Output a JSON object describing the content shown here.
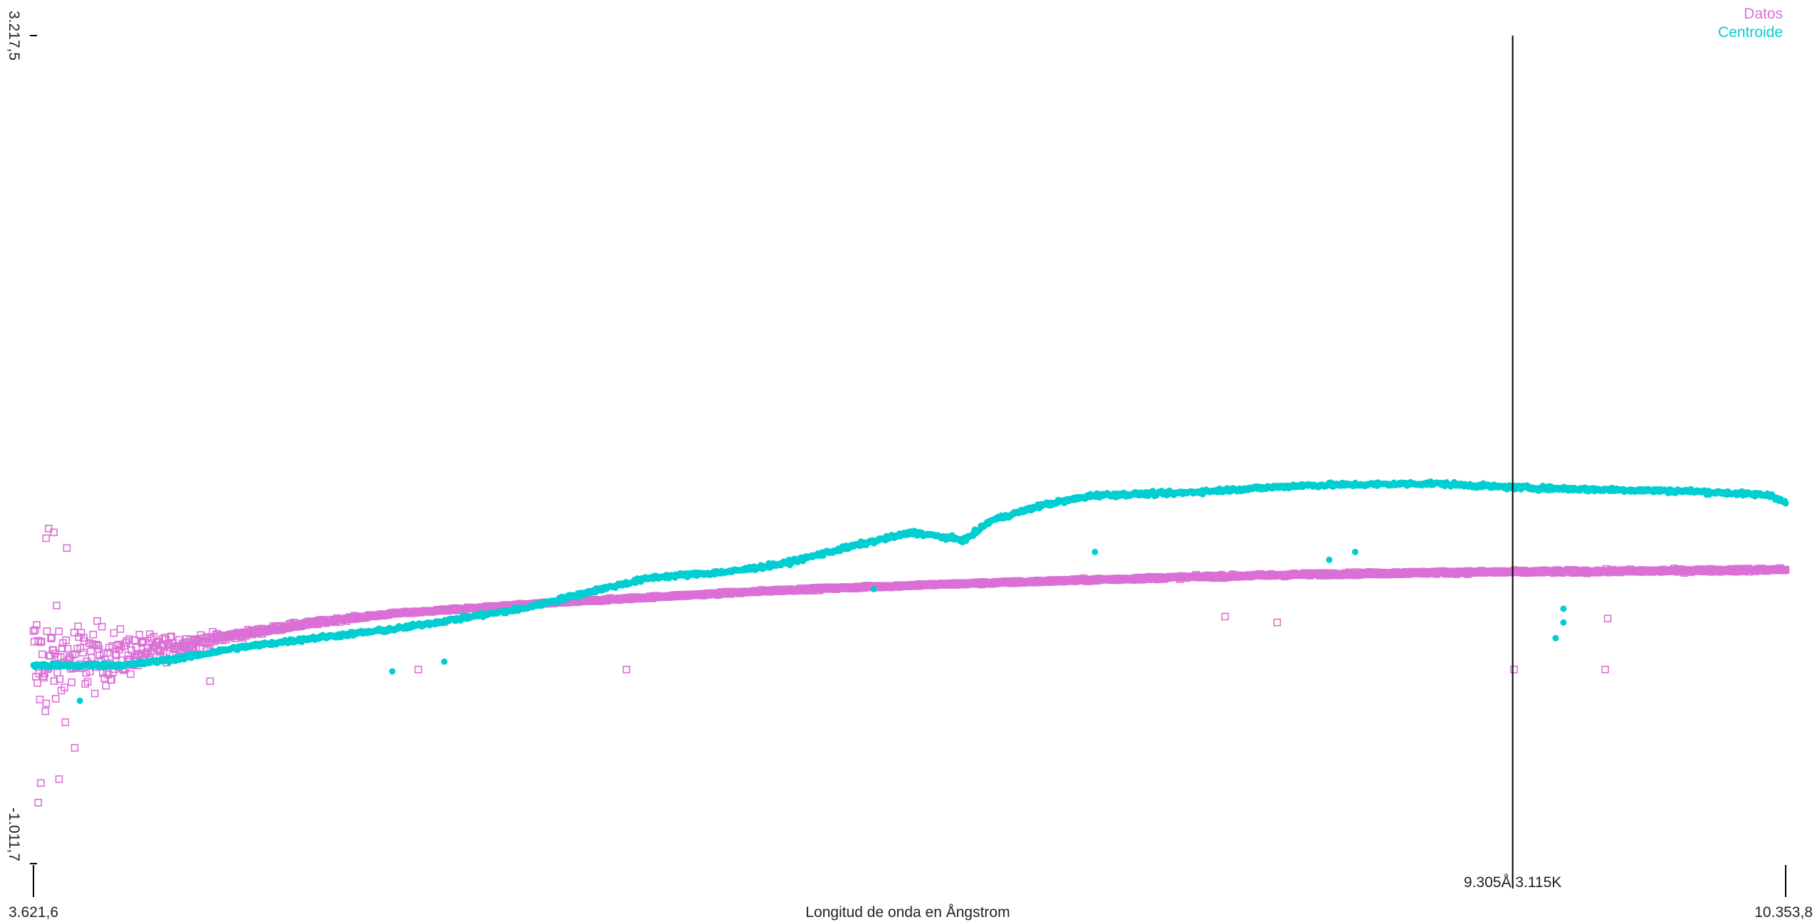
{
  "chart_data": {
    "type": "scatter",
    "title": "",
    "xlabel": "Longitud de onda en Ångstrom",
    "ylabel": "",
    "xlim": [
      3621.6,
      10353.8
    ],
    "ylim": [
      -1011.7,
      3217.5
    ],
    "tick_labels": {
      "x_min": "3.621,6",
      "x_max": "10.353,8",
      "y_min": "-1.011,7",
      "y_max": "3.217,5"
    },
    "legend_position": "top-right",
    "legend": [
      {
        "name": "Datos",
        "color": "#da70d6",
        "marker": "open-square"
      },
      {
        "name": "Centroide",
        "color": "#00ced1",
        "marker": "filled-circle"
      }
    ],
    "cursor": {
      "x": 9305,
      "label": "9.305Å 3.115K"
    },
    "series": [
      {
        "name": "Datos",
        "color": "#da70d6",
        "marker": "open-square",
        "trend": {
          "x": [
            3621.6,
            3800,
            4000,
            4200,
            4400,
            4600,
            4800,
            5000,
            5500,
            6000,
            6500,
            7000,
            7500,
            8000,
            8500,
            9000,
            9500,
            10000,
            10353.8
          ],
          "y": [
            0,
            30,
            60,
            110,
            155,
            200,
            235,
            265,
            310,
            350,
            385,
            410,
            430,
            450,
            465,
            475,
            480,
            485,
            490
          ]
        },
        "scatter_envelope": {
          "x": [
            3621.6,
            3700,
            3800,
            3900,
            4000,
            4100,
            4200,
            4400,
            5000,
            10353.8
          ],
          "y": [
            600,
            450,
            350,
            250,
            180,
            120,
            80,
            30,
            10,
            15
          ]
        },
        "outliers": {
          "x": [
            3640,
            3650,
            3670,
            3680,
            3700,
            3720,
            3750,
            3780,
            4300,
            5100,
            5900,
            8200,
            8400,
            9310,
            9660,
            9670
          ],
          "y": [
            -700,
            -600,
            650,
            700,
            680,
            -580,
            600,
            -420,
            -80,
            -20,
            -20,
            250,
            220,
            -20,
            -20,
            240
          ]
        }
      },
      {
        "name": "Centroide",
        "color": "#00ced1",
        "marker": "filled-circle",
        "trend": {
          "x": [
            3621.6,
            3800,
            4000,
            4200,
            4400,
            4700,
            5000,
            5500,
            5800,
            6000,
            6300,
            6500,
            6800,
            7000,
            7200,
            7300,
            7500,
            7700,
            8000,
            8500,
            9000,
            9300,
            9600,
            10000,
            10300,
            10353.8
          ],
          "y": [
            0,
            0,
            5,
            40,
            90,
            140,
            185,
            290,
            390,
            450,
            480,
            520,
            620,
            680,
            640,
            740,
            820,
            870,
            880,
            920,
            930,
            910,
            900,
            890,
            870,
            830
          ]
        },
        "dips": {
          "x": [
            3800,
            5200,
            5000,
            6850,
            7700,
            8600,
            8700,
            9470,
            9500,
            9500
          ],
          "y": [
            -180,
            20,
            -30,
            390,
            580,
            540,
            580,
            140,
            220,
            290
          ]
        }
      }
    ]
  }
}
